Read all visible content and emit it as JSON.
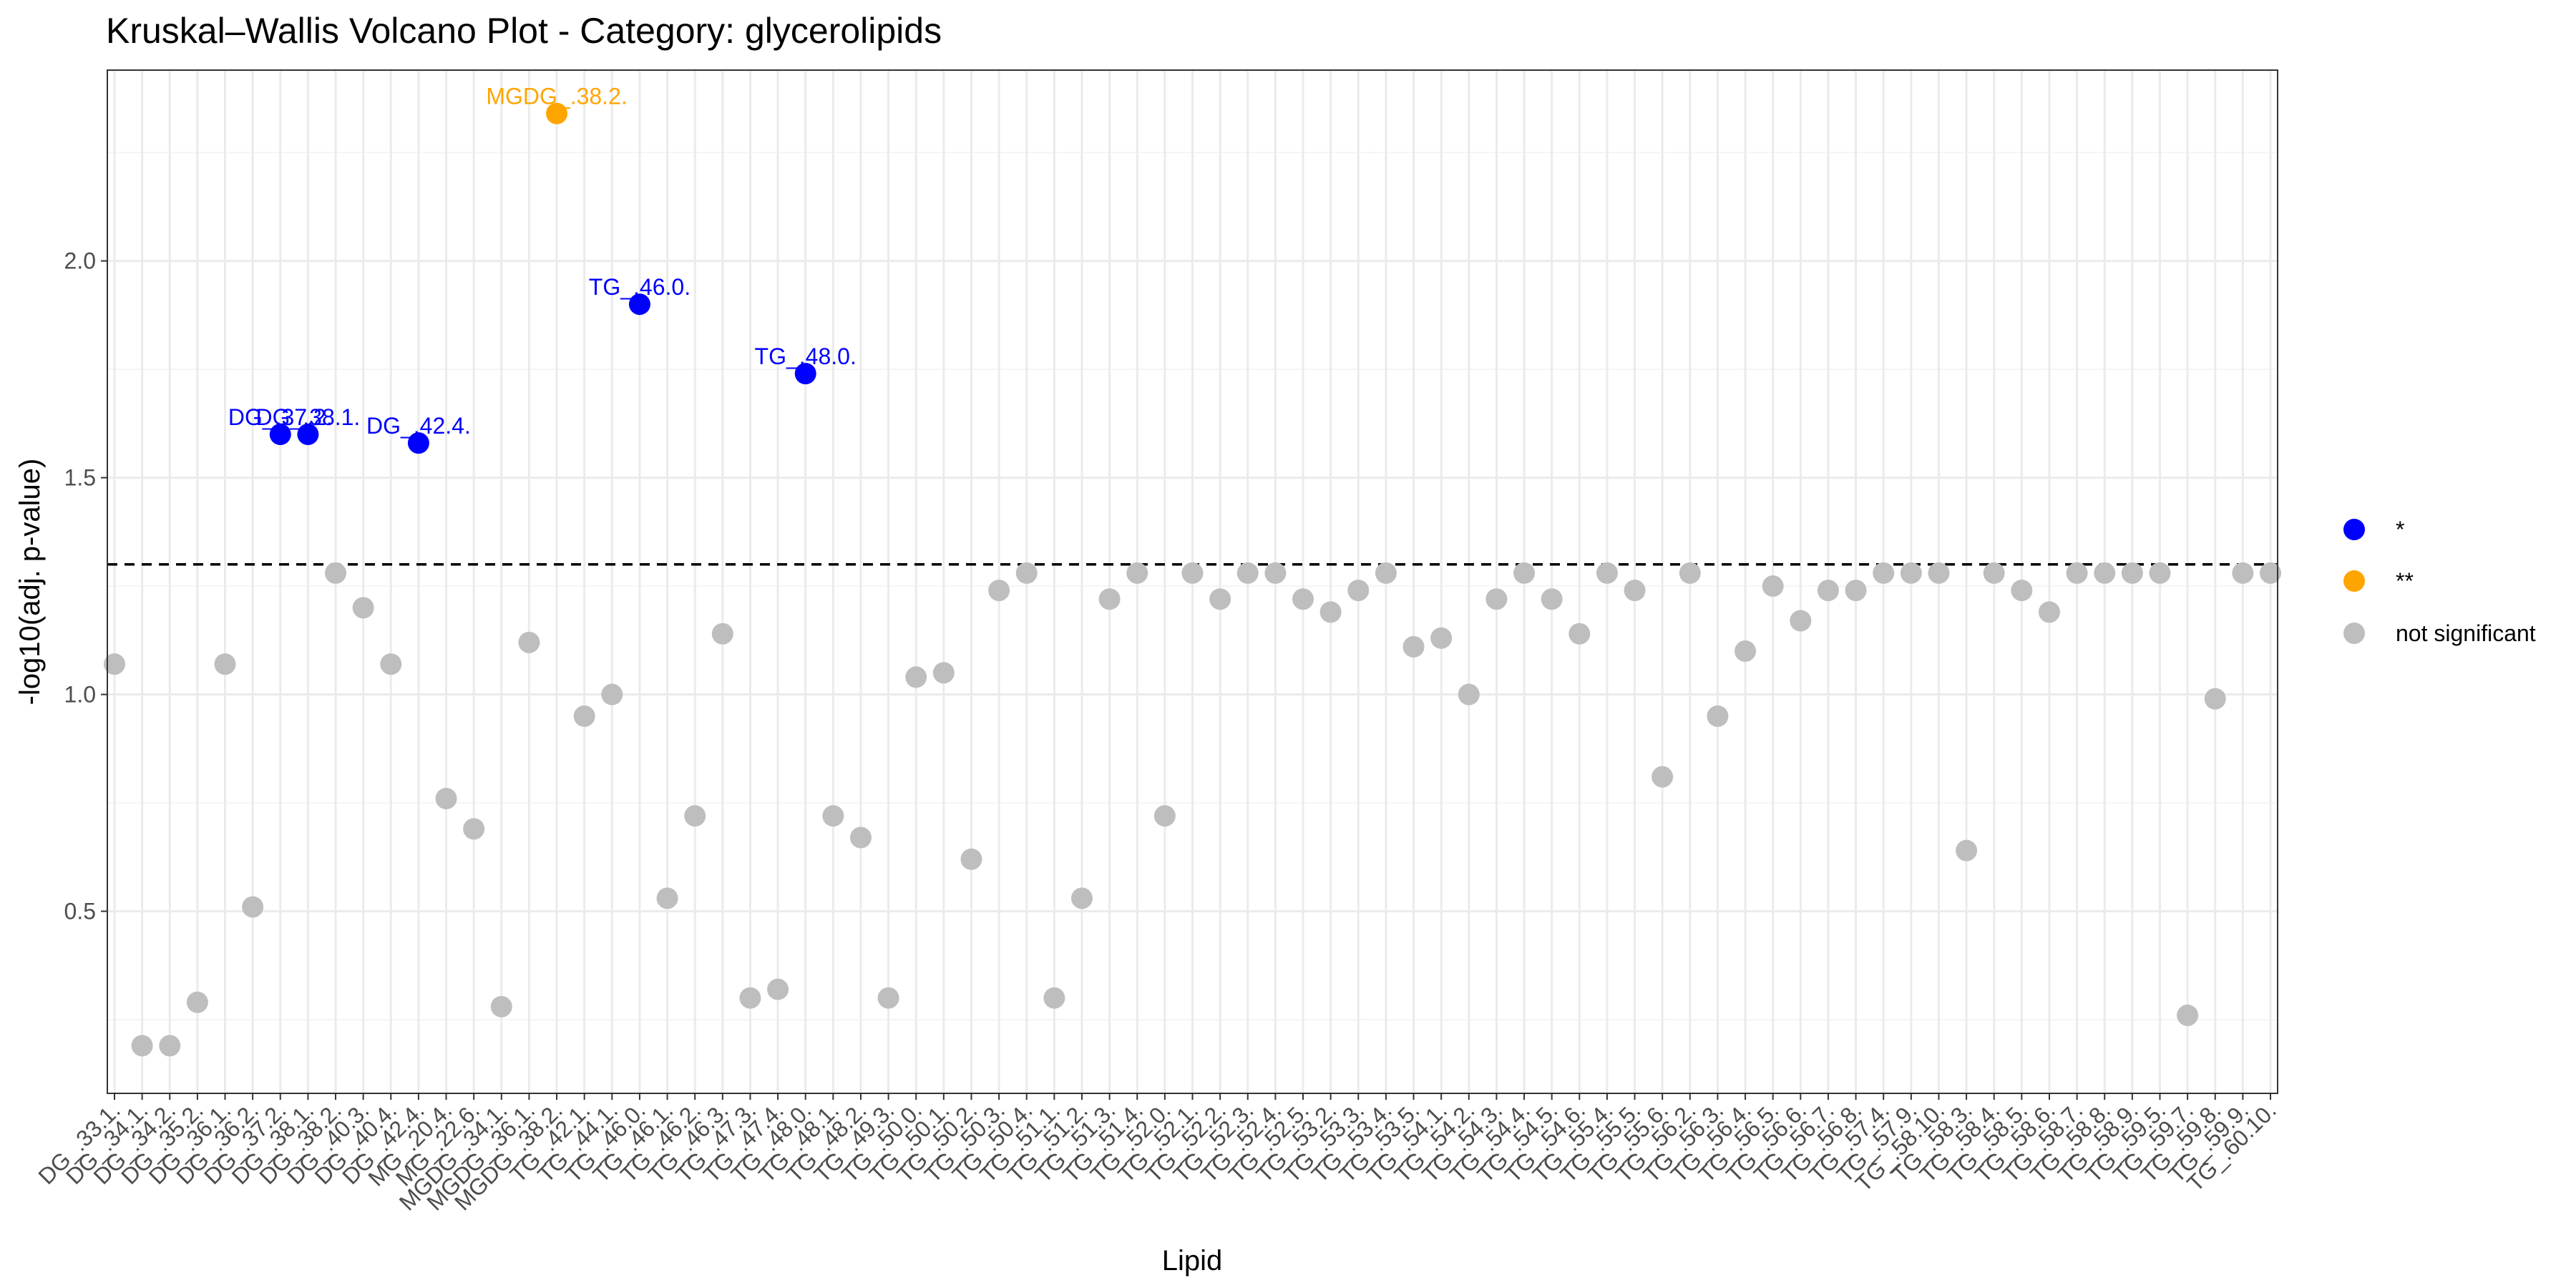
{
  "chart_data": {
    "type": "scatter",
    "title": "Kruskal–Wallis Volcano Plot - Category: glycerolipids",
    "xlabel": "Lipid",
    "ylabel": "-log10(adj. p-value)",
    "y_ticks": [
      0.5,
      1.0,
      1.5,
      2.0
    ],
    "y_tick_labels": [
      "0.5",
      "1.0",
      "1.5",
      "2.0"
    ],
    "ylim": [
      0.08,
      2.44
    ],
    "threshold": 1.3,
    "grid": true,
    "legend_position": "right",
    "colors": {
      "*": "#0000ff",
      "**": "#ffa500",
      "not significant": "#bebebe"
    },
    "legend": [
      {
        "key": "*",
        "label": "*"
      },
      {
        "key": "**",
        "label": "**"
      },
      {
        "key": "not significant",
        "label": "not significant"
      }
    ],
    "categories": [
      "DG_.33.1.",
      "DG_.34.1.",
      "DG_.34.2.",
      "DG_.35.2.",
      "DG_.36.1.",
      "DG_.36.2.",
      "DG_.37.2.",
      "DG_.38.1.",
      "DG_.38.2.",
      "DG_.40.3.",
      "DG_.40.4.",
      "DG_.42.4.",
      "MG_.20.4.",
      "MG_.22.6.",
      "MGDG_.34.1.",
      "MGDG_.36.1.",
      "MGDG_.38.2.",
      "TG_.42.1.",
      "TG_.44.1.",
      "TG_.46.0.",
      "TG_.46.1.",
      "TG_.46.2.",
      "TG_.46.3.",
      "TG_.47.3.",
      "TG_.47.4.",
      "TG_.48.0.",
      "TG_.48.1.",
      "TG_.48.2.",
      "TG_.49.3.",
      "TG_.50.0.",
      "TG_.50.1.",
      "TG_.50.2.",
      "TG_.50.3.",
      "TG_.50.4.",
      "TG_.51.1.",
      "TG_.51.2.",
      "TG_.51.3.",
      "TG_.51.4.",
      "TG_.52.0.",
      "TG_.52.1.",
      "TG_.52.2.",
      "TG_.52.3.",
      "TG_.52.4.",
      "TG_.52.5.",
      "TG_.53.2.",
      "TG_.53.3.",
      "TG_.53.4.",
      "TG_.53.5.",
      "TG_.54.1.",
      "TG_.54.2.",
      "TG_.54.3.",
      "TG_.54.4.",
      "TG_.54.5.",
      "TG_.54.6.",
      "TG_.55.4.",
      "TG_.55.5.",
      "TG_.55.6.",
      "TG_.56.2.",
      "TG_.56.3.",
      "TG_.56.4.",
      "TG_.56.5.",
      "TG_.56.6.",
      "TG_.56.7.",
      "TG_.56.8.",
      "TG_.57.4.",
      "TG_.57.9.",
      "TG_.58.10.",
      "TG_.58.3.",
      "TG_.58.4.",
      "TG_.58.5.",
      "TG_.58.6.",
      "TG_.58.7.",
      "TG_.58.8.",
      "TG_.58.9.",
      "TG_.59.5.",
      "TG_.59.7.",
      "TG_.59.8.",
      "TG_.59.9.",
      "TG_.60.10."
    ],
    "values": [
      1.07,
      0.19,
      0.19,
      0.29,
      1.07,
      0.51,
      1.6,
      1.6,
      1.28,
      1.2,
      1.07,
      1.58,
      0.76,
      0.69,
      0.28,
      1.12,
      2.34,
      0.95,
      1.0,
      1.9,
      0.53,
      0.72,
      1.14,
      0.3,
      0.32,
      1.74,
      0.72,
      0.67,
      0.3,
      1.04,
      1.05,
      0.62,
      1.24,
      1.28,
      0.3,
      0.53,
      1.22,
      1.28,
      0.72,
      1.28,
      1.22,
      1.28,
      1.28,
      1.22,
      1.19,
      1.24,
      1.28,
      1.11,
      1.13,
      1.0,
      1.22,
      1.28,
      1.22,
      1.14,
      1.28,
      1.24,
      0.81,
      1.28,
      0.95,
      1.1,
      1.25,
      1.17,
      1.24,
      1.24,
      1.28,
      1.28,
      1.28,
      0.64,
      1.28,
      1.24,
      1.19,
      1.28,
      1.28,
      1.28,
      1.28,
      0.26,
      0.99,
      1.28,
      1.28
    ],
    "significance": [
      "not significant",
      "not significant",
      "not significant",
      "not significant",
      "not significant",
      "not significant",
      "*",
      "*",
      "not significant",
      "not significant",
      "not significant",
      "*",
      "not significant",
      "not significant",
      "not significant",
      "not significant",
      "**",
      "not significant",
      "not significant",
      "*",
      "not significant",
      "not significant",
      "not significant",
      "not significant",
      "not significant",
      "*",
      "not significant",
      "not significant",
      "not significant",
      "not significant",
      "not significant",
      "not significant",
      "not significant",
      "not significant",
      "not significant",
      "not significant",
      "not significant",
      "not significant",
      "not significant",
      "not significant",
      "not significant",
      "not significant",
      "not significant",
      "not significant",
      "not significant",
      "not significant",
      "not significant",
      "not significant",
      "not significant",
      "not significant",
      "not significant",
      "not significant",
      "not significant",
      "not significant",
      "not significant",
      "not significant",
      "not significant",
      "not significant",
      "not significant",
      "not significant",
      "not significant",
      "not significant",
      "not significant",
      "not significant",
      "not significant",
      "not significant",
      "not significant",
      "not significant",
      "not significant",
      "not significant",
      "not significant",
      "not significant",
      "not significant",
      "not significant",
      "not significant",
      "not significant",
      "not significant",
      "not significant",
      "not significant"
    ],
    "annotations": [
      {
        "index": 6,
        "text": "DG_.37.2."
      },
      {
        "index": 7,
        "text": "DG_.38.1."
      },
      {
        "index": 11,
        "text": "DG_.42.4."
      },
      {
        "index": 16,
        "text": "MGDG_.38.2."
      },
      {
        "index": 19,
        "text": "TG_.46.0."
      },
      {
        "index": 25,
        "text": "TG_.48.0."
      }
    ]
  }
}
